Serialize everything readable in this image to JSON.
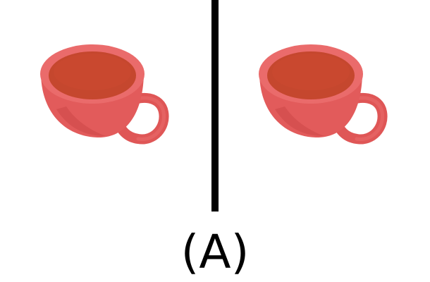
{
  "caption": "(A)",
  "panels": [
    {
      "object": "red-teacup",
      "icon": "cup-icon"
    },
    {
      "object": "red-teacup",
      "icon": "cup-icon"
    }
  ],
  "colors": {
    "background": "#ffffff",
    "divider": "#000000",
    "cup_body": "#e25b5b",
    "cup_shadow": "#cf4a4a",
    "cup_rim": "#ea6b6b",
    "tea": "#c5472e",
    "caption_text": "#000000"
  }
}
